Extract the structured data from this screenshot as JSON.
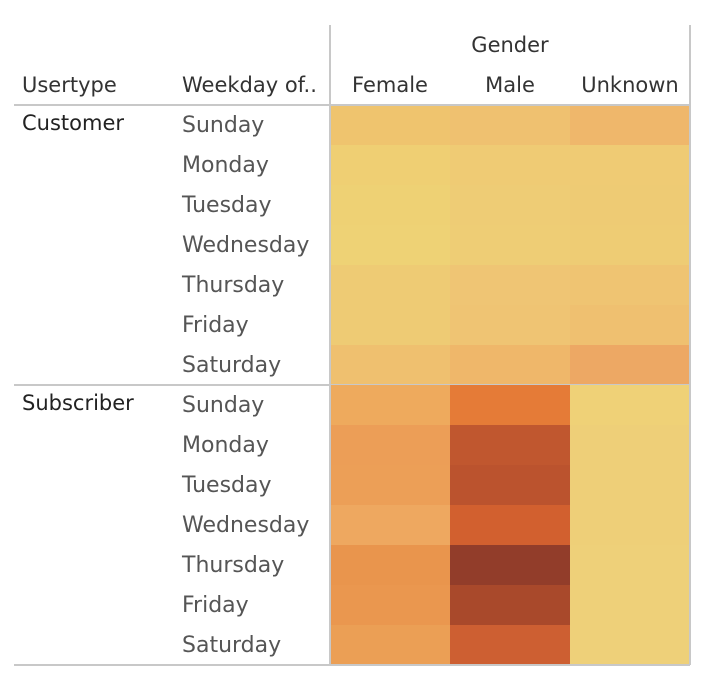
{
  "chart_data": {
    "type": "heatmap",
    "column_group_title": "Gender",
    "row_headers": [
      "Usertype",
      "Weekday of.."
    ],
    "columns": [
      "Female",
      "Male",
      "Unknown"
    ],
    "groups": [
      {
        "name": "Customer",
        "rows": [
          "Sunday",
          "Monday",
          "Tuesday",
          "Wednesday",
          "Thursday",
          "Friday",
          "Saturday"
        ],
        "colors": [
          [
            "#efc46e",
            "#efc170",
            "#efb76b"
          ],
          [
            "#efcf73",
            "#efcb74",
            "#efcb74"
          ],
          [
            "#eed174",
            "#eecc75",
            "#eecb74"
          ],
          [
            "#eed275",
            "#eecd75",
            "#eecc74"
          ],
          [
            "#eecb74",
            "#efc574",
            "#efc472"
          ],
          [
            "#eecb74",
            "#efc473",
            "#efc070"
          ],
          [
            "#efc06f",
            "#efb76a",
            "#eda864"
          ]
        ]
      },
      {
        "name": "Subscriber",
        "rows": [
          "Sunday",
          "Monday",
          "Tuesday",
          "Wednesday",
          "Thursday",
          "Friday",
          "Saturday"
        ],
        "colors": [
          [
            "#eeaa5d",
            "#e57b37",
            "#efd177"
          ],
          [
            "#ec9e57",
            "#c0572f",
            "#eecf78"
          ],
          [
            "#ec9f57",
            "#bb532e",
            "#eecf78"
          ],
          [
            "#eea860",
            "#d2602f",
            "#eecf78"
          ],
          [
            "#e9954d",
            "#923d2a",
            "#eed079"
          ],
          [
            "#ea974f",
            "#a9492b",
            "#eed079"
          ],
          [
            "#eb9f55",
            "#cd5f32",
            "#eed079"
          ]
        ]
      }
    ]
  }
}
